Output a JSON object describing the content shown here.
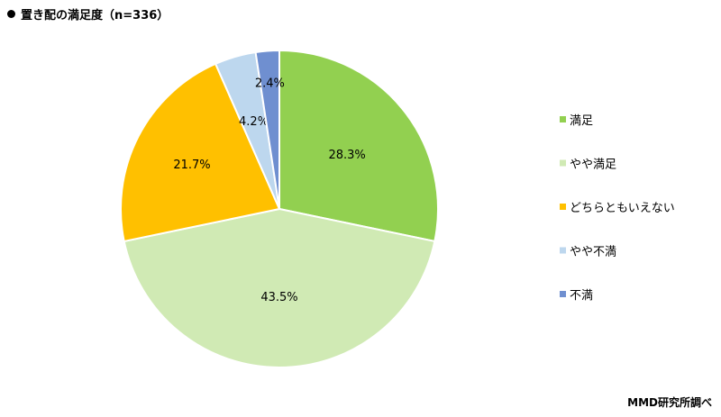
{
  "title": "置き配の満足度（n=336）",
  "source": "MMD研究所調べ",
  "chart_data": {
    "type": "pie",
    "title": "置き配の満足度（n=336）",
    "legend_placement": "right",
    "slices": [
      {
        "label": "満足",
        "value": 28.3,
        "display": "28.3%",
        "color": "#92D050"
      },
      {
        "label": "やや満足",
        "value": 43.5,
        "display": "43.5%",
        "color": "#D0EAB4"
      },
      {
        "label": "どちらともいえない",
        "value": 21.7,
        "display": "21.7%",
        "color": "#FFC000"
      },
      {
        "label": "やや不満",
        "value": 4.2,
        "display": "4.2%",
        "color": "#BDD7EE"
      },
      {
        "label": "不満",
        "value": 2.4,
        "display": "2.4%",
        "color": "#6F8FD0"
      }
    ]
  }
}
